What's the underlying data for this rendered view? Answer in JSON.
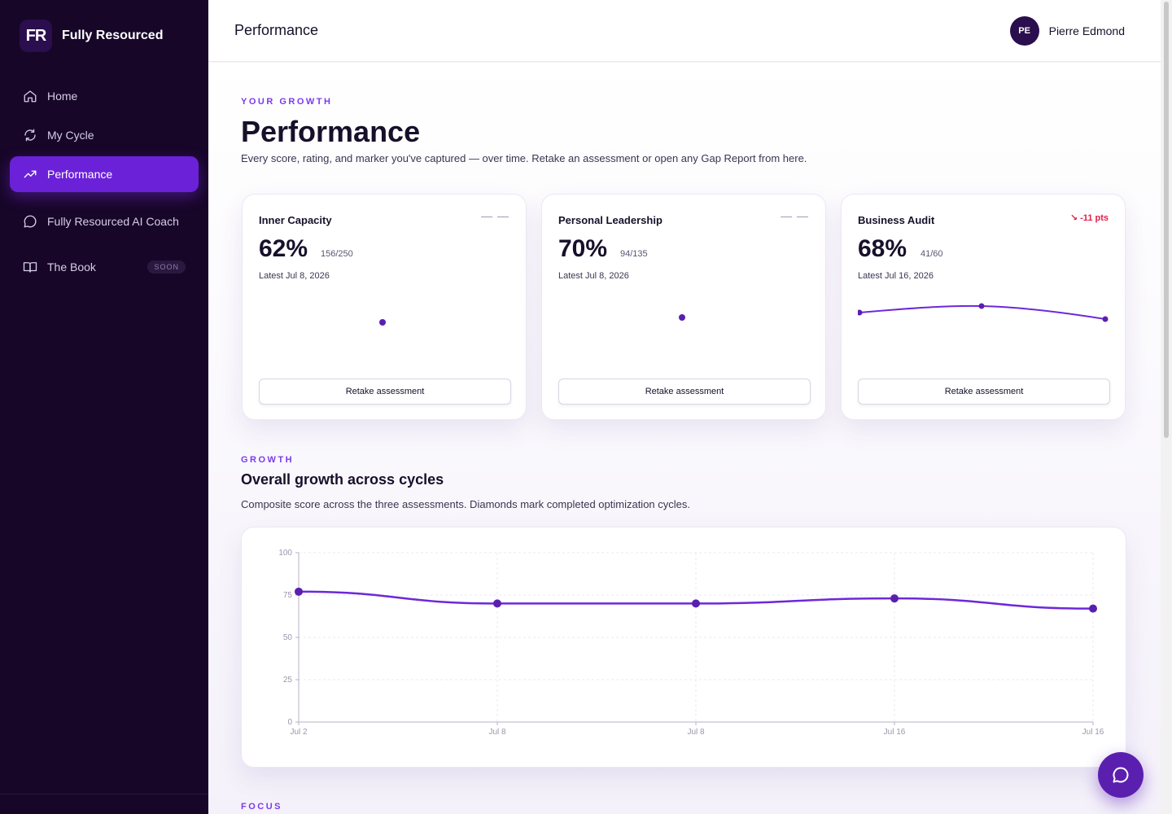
{
  "brand": {
    "logo_text": "FR",
    "name": "Fully Resourced"
  },
  "nav": {
    "items": [
      {
        "label": "Home",
        "icon": "home-icon"
      },
      {
        "label": "My Cycle",
        "icon": "cycle-icon"
      },
      {
        "label": "Performance",
        "icon": "trending-up-icon",
        "active": true
      },
      {
        "label": "Fully Resourced AI Coach",
        "icon": "chat-bubble-icon"
      },
      {
        "label": "The Book",
        "icon": "book-icon",
        "badge": "SOON"
      }
    ]
  },
  "header": {
    "title": "Performance",
    "user_initials": "PE",
    "user_name": "Pierre Edmond"
  },
  "intro": {
    "eyebrow": "YOUR GROWTH",
    "title": "Performance",
    "subtitle": "Every score, rating, and marker you've captured — over time. Retake an assessment or open any Gap Report from here."
  },
  "cards": [
    {
      "name": "Inner Capacity",
      "indicator": "— —",
      "score": "62%",
      "raw": "156/250",
      "date": "Latest Jul 8, 2026",
      "button": "Retake assessment",
      "trend": [
        62
      ]
    },
    {
      "name": "Personal Leadership",
      "indicator": "— —",
      "score": "70%",
      "raw": "94/135",
      "date": "Latest Jul 8, 2026",
      "button": "Retake assessment",
      "trend": [
        70
      ]
    },
    {
      "name": "Business Audit",
      "delta": "↘ -11 pts",
      "score": "68%",
      "raw": "41/60",
      "date": "Latest Jul 16, 2026",
      "button": "Retake assessment",
      "trend": [
        75,
        79,
        68
      ]
    }
  ],
  "growth": {
    "eyebrow": "GROWTH",
    "title": "Overall growth across cycles",
    "subtitle": "Composite score across the three assessments. Diamonds mark completed optimization cycles."
  },
  "focus": {
    "eyebrow": "FOCUS"
  },
  "colors": {
    "accent": "#6b21d8",
    "line": "#6d28d9",
    "sidebar": "#170628",
    "negative": "#e11d48"
  },
  "chart_data": {
    "type": "line",
    "categories": [
      "Jul 2",
      "Jul 8",
      "Jul 8",
      "Jul 16",
      "Jul 16"
    ],
    "series": [
      {
        "values": [
          77,
          70,
          70,
          73,
          67
        ]
      }
    ],
    "ylim": [
      0,
      100
    ],
    "yticks": [
      0,
      25,
      50,
      75,
      100
    ],
    "grid": true
  }
}
